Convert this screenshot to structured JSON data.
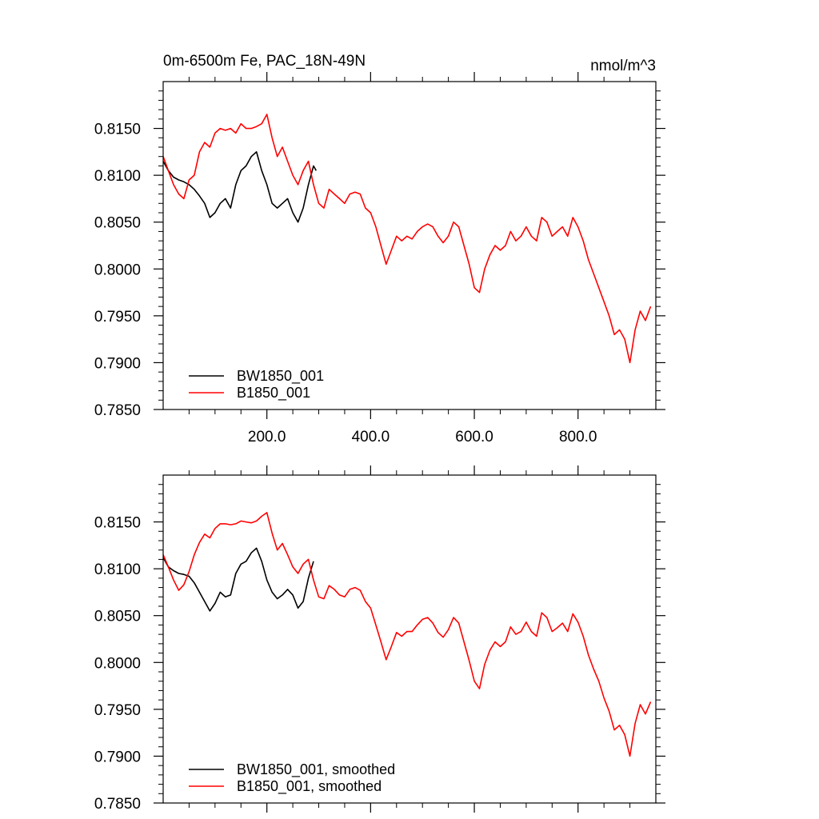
{
  "chart_data": [
    {
      "type": "line",
      "title": "0m-6500m Fe, PAC_18N-49N",
      "units": "nmol/m^3",
      "xlim": [
        0,
        950
      ],
      "ylim": [
        0.785,
        0.82
      ],
      "xticks": [
        200,
        400,
        600,
        800
      ],
      "xtick_labels": [
        "200.0",
        "400.0",
        "600.0",
        "800.0"
      ],
      "yticks": [
        0.785,
        0.79,
        0.795,
        0.8,
        0.805,
        0.81,
        0.815
      ],
      "ytick_labels": [
        "0.7850",
        "0.7900",
        "0.7950",
        "0.8000",
        "0.8050",
        "0.8100",
        "0.8150"
      ],
      "legend_position": "bottom-left",
      "series": [
        {
          "name": "BW1850_001",
          "color": "#000000",
          "x": [
            0,
            10,
            20,
            30,
            40,
            50,
            60,
            70,
            80,
            90,
            100,
            110,
            120,
            130,
            140,
            150,
            160,
            170,
            180,
            190,
            200,
            210,
            220,
            230,
            240,
            250,
            260,
            270,
            280,
            290,
            295
          ],
          "y": [
            0.8115,
            0.8105,
            0.8098,
            0.8095,
            0.8093,
            0.809,
            0.8085,
            0.8078,
            0.807,
            0.8055,
            0.806,
            0.807,
            0.8075,
            0.8065,
            0.809,
            0.8105,
            0.811,
            0.812,
            0.8125,
            0.8105,
            0.809,
            0.807,
            0.8065,
            0.807,
            0.8075,
            0.806,
            0.805,
            0.8065,
            0.809,
            0.811,
            0.8105
          ]
        },
        {
          "name": "B1850_001",
          "color": "#ff0000",
          "x": [
            0,
            10,
            20,
            30,
            40,
            50,
            60,
            70,
            80,
            90,
            100,
            110,
            120,
            130,
            140,
            150,
            160,
            170,
            180,
            190,
            200,
            210,
            220,
            230,
            240,
            250,
            260,
            270,
            280,
            290,
            300,
            310,
            320,
            330,
            340,
            350,
            360,
            370,
            380,
            390,
            400,
            410,
            420,
            430,
            440,
            450,
            460,
            470,
            480,
            490,
            500,
            510,
            520,
            530,
            540,
            550,
            560,
            570,
            580,
            590,
            600,
            610,
            620,
            630,
            640,
            650,
            660,
            670,
            680,
            690,
            700,
            710,
            720,
            730,
            740,
            750,
            760,
            770,
            780,
            790,
            800,
            810,
            820,
            830,
            840,
            850,
            860,
            870,
            880,
            890,
            900,
            910,
            920,
            930,
            940
          ],
          "y": [
            0.812,
            0.8105,
            0.809,
            0.808,
            0.8075,
            0.8095,
            0.81,
            0.8125,
            0.8135,
            0.813,
            0.8145,
            0.815,
            0.8148,
            0.815,
            0.8145,
            0.8155,
            0.815,
            0.815,
            0.8152,
            0.8155,
            0.8165,
            0.814,
            0.812,
            0.813,
            0.8115,
            0.81,
            0.809,
            0.8105,
            0.8115,
            0.809,
            0.807,
            0.8065,
            0.8085,
            0.808,
            0.8075,
            0.807,
            0.808,
            0.8082,
            0.808,
            0.8065,
            0.806,
            0.8045,
            0.8025,
            0.8005,
            0.802,
            0.8035,
            0.803,
            0.8035,
            0.8032,
            0.804,
            0.8045,
            0.8048,
            0.8045,
            0.8035,
            0.8028,
            0.8035,
            0.805,
            0.8045,
            0.8025,
            0.8005,
            0.798,
            0.7975,
            0.8,
            0.8015,
            0.8025,
            0.802,
            0.8025,
            0.804,
            0.803,
            0.8035,
            0.8045,
            0.8035,
            0.803,
            0.8055,
            0.805,
            0.8035,
            0.804,
            0.8045,
            0.8035,
            0.8055,
            0.8045,
            0.803,
            0.801,
            0.7995,
            0.798,
            0.7965,
            0.795,
            0.793,
            0.7935,
            0.7925,
            0.79,
            0.7935,
            0.7955,
            0.7945,
            0.796
          ]
        }
      ]
    },
    {
      "type": "line",
      "xlim": [
        0,
        950
      ],
      "ylim": [
        0.785,
        0.82
      ],
      "xticks": [
        200,
        400,
        600,
        800
      ],
      "yticks": [
        0.785,
        0.79,
        0.795,
        0.8,
        0.805,
        0.81,
        0.815
      ],
      "ytick_labels": [
        "0.7850",
        "0.7900",
        "0.7950",
        "0.8000",
        "0.8050",
        "0.8100",
        "0.8150"
      ],
      "legend_position": "bottom-left",
      "series": [
        {
          "name": "BW1850_001, smoothed",
          "color": "#000000",
          "x": [
            0,
            10,
            20,
            30,
            40,
            50,
            60,
            70,
            80,
            90,
            100,
            110,
            120,
            130,
            140,
            150,
            160,
            170,
            180,
            190,
            200,
            210,
            220,
            230,
            240,
            250,
            260,
            270,
            280,
            290
          ],
          "y": [
            0.8112,
            0.8102,
            0.8098,
            0.8095,
            0.8094,
            0.8092,
            0.8085,
            0.8075,
            0.8065,
            0.8055,
            0.8063,
            0.8075,
            0.807,
            0.8072,
            0.8095,
            0.8105,
            0.8108,
            0.8117,
            0.8122,
            0.8108,
            0.8088,
            0.8075,
            0.8068,
            0.8072,
            0.8078,
            0.8072,
            0.8058,
            0.8065,
            0.809,
            0.8108
          ]
        },
        {
          "name": "B1850_001, smoothed",
          "color": "#ff0000",
          "x": [
            0,
            10,
            20,
            30,
            40,
            50,
            60,
            70,
            80,
            90,
            100,
            110,
            120,
            130,
            140,
            150,
            160,
            170,
            180,
            190,
            200,
            210,
            220,
            230,
            240,
            250,
            260,
            270,
            280,
            290,
            300,
            310,
            320,
            330,
            340,
            350,
            360,
            370,
            380,
            390,
            400,
            410,
            420,
            430,
            440,
            450,
            460,
            470,
            480,
            490,
            500,
            510,
            520,
            530,
            540,
            550,
            560,
            570,
            580,
            590,
            600,
            610,
            620,
            630,
            640,
            650,
            660,
            670,
            680,
            690,
            700,
            710,
            720,
            730,
            740,
            750,
            760,
            770,
            780,
            790,
            800,
            810,
            820,
            830,
            840,
            850,
            860,
            870,
            880,
            890,
            900,
            910,
            920,
            930,
            940
          ],
          "y": [
            0.8115,
            0.8102,
            0.8088,
            0.8077,
            0.8083,
            0.8097,
            0.8115,
            0.8128,
            0.8137,
            0.8133,
            0.8143,
            0.8148,
            0.8148,
            0.8147,
            0.8148,
            0.8151,
            0.815,
            0.8149,
            0.8151,
            0.8156,
            0.816,
            0.8138,
            0.812,
            0.8127,
            0.8115,
            0.8102,
            0.8095,
            0.8105,
            0.811,
            0.8088,
            0.807,
            0.8068,
            0.8082,
            0.8078,
            0.8072,
            0.807,
            0.8078,
            0.808,
            0.8077,
            0.8065,
            0.8058,
            0.804,
            0.8022,
            0.8003,
            0.8017,
            0.8032,
            0.8028,
            0.8033,
            0.8033,
            0.804,
            0.8046,
            0.8048,
            0.8042,
            0.8032,
            0.8027,
            0.8035,
            0.8048,
            0.8042,
            0.8022,
            0.8002,
            0.798,
            0.7972,
            0.7998,
            0.8013,
            0.8022,
            0.8017,
            0.8022,
            0.8038,
            0.803,
            0.8033,
            0.8043,
            0.8033,
            0.8028,
            0.8053,
            0.8048,
            0.8033,
            0.8037,
            0.8042,
            0.8033,
            0.8052,
            0.8043,
            0.8028,
            0.8008,
            0.7993,
            0.798,
            0.7962,
            0.7948,
            0.7928,
            0.7933,
            0.7923,
            0.79,
            0.7935,
            0.7955,
            0.7945,
            0.7958
          ]
        }
      ]
    }
  ]
}
